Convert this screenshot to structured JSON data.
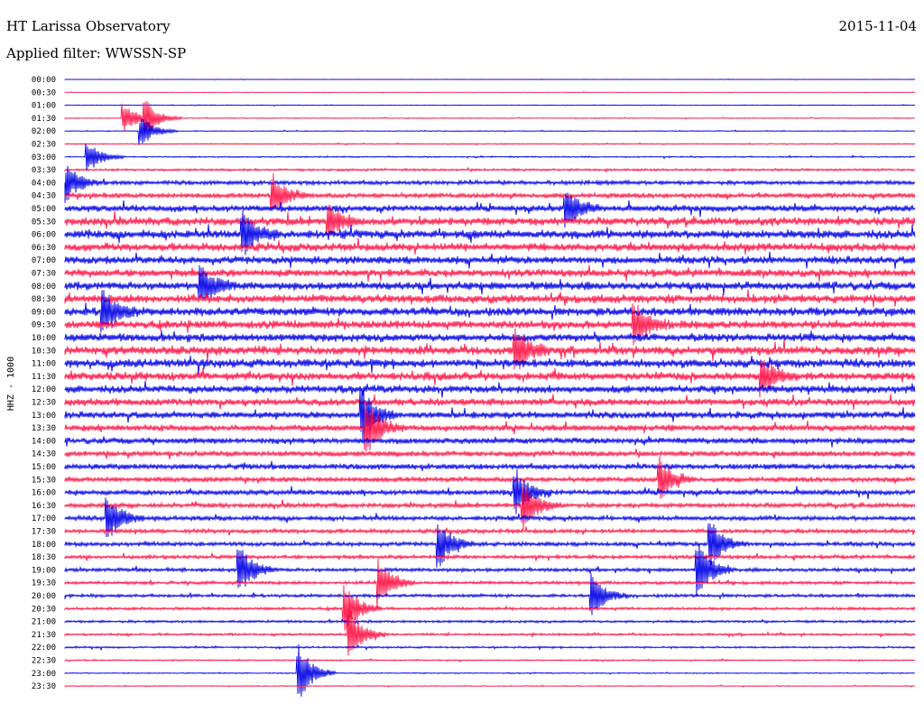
{
  "header": {
    "station_title": "HT Larissa Observatory",
    "date": "2015-11-04",
    "filter_text": "Applied filter: WWSSN-SP"
  },
  "chart_data": {
    "type": "line",
    "subtype": "helicorder",
    "ylabel": "HHZ - 1000",
    "row_labels": [
      "00:00",
      "00:30",
      "01:00",
      "01:30",
      "02:00",
      "02:30",
      "03:00",
      "03:30",
      "04:00",
      "04:30",
      "05:00",
      "05:30",
      "06:00",
      "06:30",
      "07:00",
      "07:30",
      "08:00",
      "08:30",
      "09:00",
      "09:30",
      "10:00",
      "10:30",
      "11:00",
      "11:30",
      "12:00",
      "12:30",
      "13:00",
      "13:30",
      "14:00",
      "14:30",
      "15:00",
      "15:30",
      "16:00",
      "16:30",
      "17:00",
      "17:30",
      "18:00",
      "18:30",
      "19:00",
      "19:30",
      "20:00",
      "20:30",
      "21:00",
      "21:30",
      "22:00",
      "22:30",
      "23:00",
      "23:30"
    ],
    "series_colors": [
      "#0000e6",
      "#ff1447"
    ],
    "noise_level": [
      0.05,
      0.06,
      0.08,
      0.09,
      0.1,
      0.12,
      0.15,
      0.25,
      0.45,
      0.55,
      0.7,
      0.9,
      0.95,
      0.9,
      0.85,
      0.85,
      0.9,
      0.95,
      0.95,
      0.9,
      0.9,
      0.95,
      0.95,
      0.9,
      0.85,
      0.8,
      0.75,
      0.7,
      0.65,
      0.6,
      0.6,
      0.55,
      0.55,
      0.5,
      0.5,
      0.45,
      0.45,
      0.4,
      0.4,
      0.35,
      0.35,
      0.3,
      0.28,
      0.25,
      0.2,
      0.15,
      0.12,
      0.1
    ],
    "events": [
      {
        "row": 3,
        "x_frac": 0.07,
        "amp": 1.2
      },
      {
        "row": 3,
        "x_frac": 0.095,
        "amp": 1.3
      },
      {
        "row": 4,
        "x_frac": 0.09,
        "amp": 1.2
      },
      {
        "row": 6,
        "x_frac": 0.027,
        "amp": 1.3
      },
      {
        "row": 8,
        "x_frac": 0.0,
        "amp": 1.6
      },
      {
        "row": 9,
        "x_frac": 0.245,
        "amp": 1.6
      },
      {
        "row": 10,
        "x_frac": 0.59,
        "amp": 1.5
      },
      {
        "row": 11,
        "x_frac": 0.31,
        "amp": 1.4
      },
      {
        "row": 12,
        "x_frac": 0.21,
        "amp": 1.7
      },
      {
        "row": 16,
        "x_frac": 0.16,
        "amp": 1.5
      },
      {
        "row": 18,
        "x_frac": 0.045,
        "amp": 1.8
      },
      {
        "row": 19,
        "x_frac": 0.67,
        "amp": 1.6
      },
      {
        "row": 21,
        "x_frac": 0.53,
        "amp": 1.7
      },
      {
        "row": 23,
        "x_frac": 0.82,
        "amp": 1.6
      },
      {
        "row": 26,
        "x_frac": 0.35,
        "amp": 2.0
      },
      {
        "row": 27,
        "x_frac": 0.355,
        "amp": 2.2
      },
      {
        "row": 31,
        "x_frac": 0.7,
        "amp": 1.7
      },
      {
        "row": 32,
        "x_frac": 0.53,
        "amp": 1.9
      },
      {
        "row": 33,
        "x_frac": 0.54,
        "amp": 1.9
      },
      {
        "row": 34,
        "x_frac": 0.05,
        "amp": 1.9
      },
      {
        "row": 36,
        "x_frac": 0.44,
        "amp": 1.8
      },
      {
        "row": 36,
        "x_frac": 0.76,
        "amp": 1.8
      },
      {
        "row": 38,
        "x_frac": 0.205,
        "amp": 2.0
      },
      {
        "row": 38,
        "x_frac": 0.745,
        "amp": 2.1
      },
      {
        "row": 39,
        "x_frac": 0.37,
        "amp": 2.0
      },
      {
        "row": 40,
        "x_frac": 0.62,
        "amp": 1.7
      },
      {
        "row": 41,
        "x_frac": 0.33,
        "amp": 2.0
      },
      {
        "row": 43,
        "x_frac": 0.335,
        "amp": 2.0
      },
      {
        "row": 46,
        "x_frac": 0.275,
        "amp": 2.4
      }
    ]
  }
}
